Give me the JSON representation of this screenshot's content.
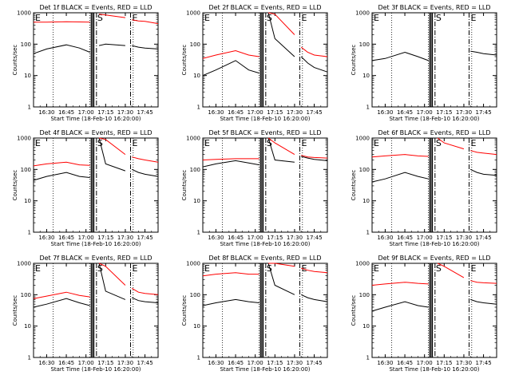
{
  "figure": {
    "xlabel": "Start Time (18-Feb-10 16:20:00)",
    "ylabel": "Counts/sec",
    "x_ticks": [
      "16:30",
      "16:45",
      "17:00",
      "17:15",
      "17:30",
      "17:45"
    ],
    "y_ticks": [
      "1",
      "10",
      "100",
      "1000"
    ],
    "flag_labels": [
      "E",
      "S",
      "E"
    ],
    "colors": {
      "events": "#000000",
      "lld": "#ff0000",
      "axes": "#000000",
      "background": "#ffffff"
    }
  },
  "chart_data": [
    {
      "type": "line",
      "title": "Det 1f BLACK = Events, RED = LLD",
      "xlabel": "Start Time (18-Feb-10 16:20:00)",
      "ylabel": "Counts/sec",
      "y_scale": "log",
      "ylim": [
        1,
        1000
      ],
      "xlim": [
        "16:20",
        "17:55"
      ],
      "x": [
        "16:20",
        "16:30",
        "16:45",
        "16:55",
        "17:03",
        "17:06",
        "17:10",
        "17:15",
        "17:30",
        "17:33",
        "17:35",
        "17:40",
        "17:45",
        "17:55"
      ],
      "series": [
        {
          "name": "Events",
          "values": [
            50,
            70,
            95,
            75,
            55,
            null,
            90,
            100,
            90,
            null,
            90,
            80,
            75,
            70
          ]
        },
        {
          "name": "LLD",
          "values": [
            500,
            500,
            520,
            510,
            500,
            null,
            900,
            850,
            700,
            null,
            600,
            550,
            530,
            450
          ]
        }
      ],
      "vlines": {
        "dotted": [
          "16:35",
          "17:03",
          "17:36"
        ],
        "solid": [
          "17:04",
          "17:05",
          "17:06"
        ],
        "dashed": [
          "17:08",
          "17:34"
        ]
      },
      "grid": false
    },
    {
      "type": "line",
      "title": "Det 2f BLACK = Events, RED = LLD",
      "xlabel": "Start Time (18-Feb-10 16:20:00)",
      "ylabel": "Counts/sec",
      "y_scale": "log",
      "ylim": [
        1,
        1000
      ],
      "xlim": [
        "16:20",
        "17:55"
      ],
      "x": [
        "16:20",
        "16:30",
        "16:45",
        "16:55",
        "17:03",
        "17:06",
        "17:10",
        "17:15",
        "17:30",
        "17:33",
        "17:35",
        "17:40",
        "17:45",
        "17:55"
      ],
      "series": [
        {
          "name": "Events",
          "values": [
            10,
            15,
            30,
            15,
            12,
            null,
            1000,
            150,
            40,
            null,
            40,
            25,
            18,
            13
          ]
        },
        {
          "name": "LLD",
          "values": [
            35,
            45,
            62,
            45,
            40,
            null,
            1000,
            900,
            200,
            null,
            80,
            55,
            45,
            40
          ]
        }
      ],
      "vlines": {
        "dotted": [
          "16:35",
          "17:03",
          "17:36"
        ],
        "solid": [
          "17:04",
          "17:05",
          "17:06"
        ],
        "dashed": [
          "17:08",
          "17:34"
        ]
      },
      "grid": false
    },
    {
      "type": "line",
      "title": "Det 3f BLACK = Events, RED = LLD",
      "xlabel": "Start Time (18-Feb-10 16:20:00)",
      "ylabel": "Counts/sec",
      "y_scale": "log",
      "ylim": [
        1,
        1000
      ],
      "xlim": [
        "16:20",
        "17:55"
      ],
      "x": [
        "16:20",
        "16:30",
        "16:45",
        "16:55",
        "17:03",
        "17:06",
        "17:10",
        "17:15",
        "17:30",
        "17:33",
        "17:35",
        "17:40",
        "17:45",
        "17:55"
      ],
      "series": [
        {
          "name": "Events",
          "values": [
            30,
            35,
            55,
            40,
            30,
            null,
            null,
            null,
            null,
            null,
            60,
            55,
            50,
            45
          ]
        }
      ],
      "vlines": {
        "dotted": [
          "16:35",
          "17:03",
          "17:36"
        ],
        "solid": [
          "17:04",
          "17:05",
          "17:06"
        ],
        "dashed": [
          "17:08",
          "17:34"
        ]
      },
      "grid": false
    },
    {
      "type": "line",
      "title": "Det 4f BLACK = Events, RED = LLD",
      "xlabel": "Start Time (18-Feb-10 16:20:00)",
      "ylabel": "Counts/sec",
      "y_scale": "log",
      "ylim": [
        1,
        1000
      ],
      "xlim": [
        "16:20",
        "17:55"
      ],
      "x": [
        "16:20",
        "16:30",
        "16:45",
        "16:55",
        "17:03",
        "17:06",
        "17:10",
        "17:15",
        "17:30",
        "17:33",
        "17:35",
        "17:40",
        "17:45",
        "17:55"
      ],
      "series": [
        {
          "name": "Events",
          "values": [
            45,
            60,
            80,
            60,
            55,
            null,
            1000,
            150,
            90,
            null,
            100,
            80,
            70,
            60
          ]
        },
        {
          "name": "LLD",
          "values": [
            130,
            150,
            170,
            140,
            135,
            null,
            1000,
            900,
            300,
            null,
            250,
            220,
            200,
            170
          ]
        }
      ],
      "vlines": {
        "dotted": [
          "16:35",
          "17:03",
          "17:36"
        ],
        "solid": [
          "17:04",
          "17:05",
          "17:06"
        ],
        "dashed": [
          "17:08",
          "17:34"
        ]
      },
      "grid": false
    },
    {
      "type": "line",
      "title": "Det 5f BLACK = Events, RED = LLD",
      "xlabel": "Start Time (18-Feb-10 16:20:00)",
      "ylabel": "Counts/sec",
      "y_scale": "log",
      "ylim": [
        1,
        1000
      ],
      "xlim": [
        "16:20",
        "17:55"
      ],
      "x": [
        "16:20",
        "16:30",
        "16:45",
        "16:55",
        "17:03",
        "17:06",
        "17:10",
        "17:15",
        "17:30",
        "17:33",
        "17:35",
        "17:40",
        "17:45",
        "17:55"
      ],
      "series": [
        {
          "name": "Events",
          "values": [
            120,
            150,
            190,
            160,
            140,
            null,
            1000,
            200,
            170,
            null,
            260,
            230,
            210,
            190
          ]
        },
        {
          "name": "LLD",
          "values": [
            200,
            210,
            220,
            220,
            220,
            null,
            1000,
            700,
            300,
            null,
            280,
            250,
            240,
            230
          ]
        }
      ],
      "vlines": {
        "dotted": [
          "16:35",
          "17:03",
          "17:36"
        ],
        "solid": [
          "17:04",
          "17:05",
          "17:06"
        ],
        "dashed": [
          "17:08",
          "17:34"
        ]
      },
      "grid": false
    },
    {
      "type": "line",
      "title": "Det 6f BLACK = Events, RED = LLD",
      "xlabel": "Start Time (18-Feb-10 16:20:00)",
      "ylabel": "Counts/sec",
      "y_scale": "log",
      "ylim": [
        1,
        1000
      ],
      "xlim": [
        "16:20",
        "17:55"
      ],
      "x": [
        "16:20",
        "16:30",
        "16:45",
        "16:55",
        "17:03",
        "17:06",
        "17:10",
        "17:15",
        "17:30",
        "17:33",
        "17:35",
        "17:40",
        "17:45",
        "17:55"
      ],
      "series": [
        {
          "name": "Events",
          "values": [
            40,
            50,
            80,
            60,
            50,
            null,
            null,
            null,
            null,
            null,
            100,
            80,
            70,
            65
          ]
        },
        {
          "name": "LLD",
          "values": [
            250,
            270,
            300,
            270,
            260,
            null,
            1000,
            700,
            450,
            null,
            400,
            350,
            330,
            300
          ]
        }
      ],
      "vlines": {
        "dotted": [
          "16:35",
          "17:03",
          "17:36"
        ],
        "solid": [
          "17:04",
          "17:05",
          "17:06"
        ],
        "dashed": [
          "17:08",
          "17:34"
        ]
      },
      "grid": false
    },
    {
      "type": "line",
      "title": "Det 7f BLACK = Events, RED = LLD",
      "xlabel": "Start Time (18-Feb-10 16:20:00)",
      "ylabel": "Counts/sec",
      "y_scale": "log",
      "ylim": [
        1,
        1000
      ],
      "xlim": [
        "16:20",
        "17:55"
      ],
      "x": [
        "16:20",
        "16:30",
        "16:45",
        "16:55",
        "17:03",
        "17:06",
        "17:10",
        "17:15",
        "17:30",
        "17:33",
        "17:35",
        "17:40",
        "17:45",
        "17:55"
      ],
      "series": [
        {
          "name": "Events",
          "values": [
            40,
            50,
            75,
            55,
            45,
            null,
            1000,
            130,
            70,
            null,
            80,
            65,
            60,
            55
          ]
        },
        {
          "name": "LLD",
          "values": [
            75,
            90,
            120,
            95,
            85,
            null,
            1000,
            800,
            200,
            null,
            160,
            120,
            110,
            100
          ]
        }
      ],
      "vlines": {
        "dotted": [
          "16:35",
          "17:03",
          "17:36"
        ],
        "solid": [
          "17:04",
          "17:05",
          "17:06"
        ],
        "dashed": [
          "17:08",
          "17:34"
        ]
      },
      "grid": false
    },
    {
      "type": "line",
      "title": "Det 8f BLACK = Events, RED = LLD",
      "xlabel": "Start Time (18-Feb-10 16:20:00)",
      "ylabel": "Counts/sec",
      "y_scale": "log",
      "ylim": [
        1,
        1000
      ],
      "xlim": [
        "16:20",
        "17:55"
      ],
      "x": [
        "16:20",
        "16:30",
        "16:45",
        "16:55",
        "17:03",
        "17:06",
        "17:10",
        "17:15",
        "17:30",
        "17:33",
        "17:35",
        "17:40",
        "17:45",
        "17:55"
      ],
      "series": [
        {
          "name": "Events",
          "values": [
            45,
            55,
            70,
            60,
            55,
            null,
            1000,
            200,
            100,
            null,
            100,
            80,
            70,
            60
          ]
        },
        {
          "name": "LLD",
          "values": [
            400,
            450,
            500,
            450,
            450,
            null,
            1000,
            1000,
            800,
            null,
            700,
            600,
            550,
            500
          ]
        }
      ],
      "vlines": {
        "dotted": [
          "16:35",
          "17:03",
          "17:36"
        ],
        "solid": [
          "17:04",
          "17:05",
          "17:06"
        ],
        "dashed": [
          "17:08",
          "17:34"
        ]
      },
      "grid": false
    },
    {
      "type": "line",
      "title": "Det 9f BLACK = Events, RED = LLD",
      "xlabel": "Start Time (18-Feb-10 16:20:00)",
      "ylabel": "Counts/sec",
      "y_scale": "log",
      "ylim": [
        1,
        1000
      ],
      "xlim": [
        "16:20",
        "17:55"
      ],
      "x": [
        "16:20",
        "16:30",
        "16:45",
        "16:55",
        "17:03",
        "17:06",
        "17:10",
        "17:15",
        "17:30",
        "17:33",
        "17:35",
        "17:40",
        "17:45",
        "17:55"
      ],
      "series": [
        {
          "name": "Events",
          "values": [
            30,
            40,
            60,
            45,
            40,
            null,
            null,
            null,
            null,
            null,
            70,
            60,
            55,
            50
          ]
        },
        {
          "name": "LLD",
          "values": [
            200,
            220,
            250,
            230,
            220,
            null,
            1000,
            800,
            350,
            null,
            280,
            250,
            240,
            230
          ]
        }
      ],
      "vlines": {
        "dotted": [
          "16:35",
          "17:03",
          "17:36"
        ],
        "solid": [
          "17:04",
          "17:05",
          "17:06"
        ],
        "dashed": [
          "17:08",
          "17:34"
        ]
      },
      "grid": false
    }
  ]
}
